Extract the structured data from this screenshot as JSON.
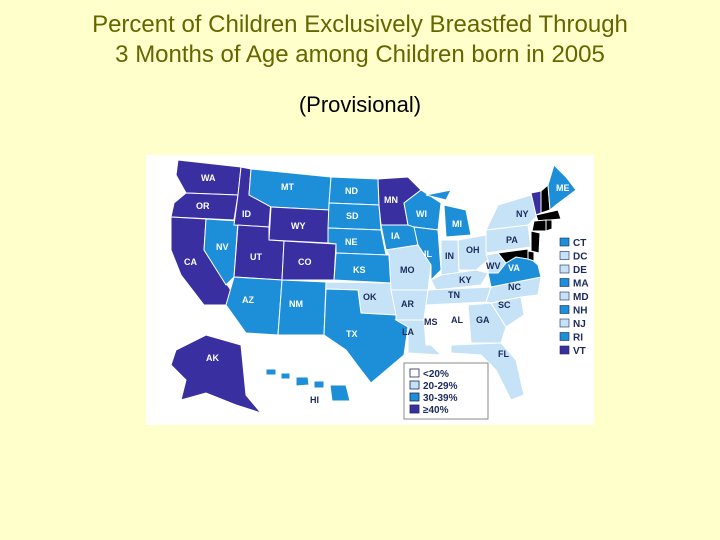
{
  "title_line1": "Percent of Children Exclusively Breastfed Through",
  "title_line2": "3 Months of Age among Children born in 2005",
  "subtitle": "(Provisional)",
  "colors": {
    "lt20": "#ffffff",
    "c20_29": "#c6e2f7",
    "c30_39": "#1d8fd8",
    "ge40": "#3a2fa0",
    "background": "#ffffcc"
  },
  "legend": {
    "lt20": "<20%",
    "c20_29": "20-29%",
    "c30_39": "30-39%",
    "ge40": "≥40%"
  },
  "states": {
    "WA": {
      "label": "WA",
      "category": "ge40"
    },
    "OR": {
      "label": "OR",
      "category": "ge40"
    },
    "CA": {
      "label": "CA",
      "category": "ge40"
    },
    "ID": {
      "label": "ID",
      "category": "ge40"
    },
    "NV": {
      "label": "NV",
      "category": "c30_39"
    },
    "MT": {
      "label": "MT",
      "category": "c30_39"
    },
    "WY": {
      "label": "WY",
      "category": "ge40"
    },
    "UT": {
      "label": "UT",
      "category": "ge40"
    },
    "CO": {
      "label": "CO",
      "category": "ge40"
    },
    "AZ": {
      "label": "AZ",
      "category": "c30_39"
    },
    "NM": {
      "label": "NM",
      "category": "c30_39"
    },
    "ND": {
      "label": "ND",
      "category": "c30_39"
    },
    "SD": {
      "label": "SD",
      "category": "c30_39"
    },
    "NE": {
      "label": "NE",
      "category": "c30_39"
    },
    "KS": {
      "label": "KS",
      "category": "c30_39"
    },
    "OK": {
      "label": "OK",
      "category": "c20_29"
    },
    "TX": {
      "label": "TX",
      "category": "c30_39"
    },
    "MN": {
      "label": "MN",
      "category": "ge40"
    },
    "IA": {
      "label": "IA",
      "category": "c30_39"
    },
    "MO": {
      "label": "MO",
      "category": "c20_29"
    },
    "AR": {
      "label": "AR",
      "category": "c20_29"
    },
    "LA": {
      "label": "LA",
      "category": "c20_29"
    },
    "WI": {
      "label": "WI",
      "category": "c30_39"
    },
    "IL": {
      "label": "IL",
      "category": "c30_39"
    },
    "MI": {
      "label": "MI",
      "category": "c30_39"
    },
    "IN": {
      "label": "IN",
      "category": "c20_29"
    },
    "OH": {
      "label": "OH",
      "category": "c20_29"
    },
    "KY": {
      "label": "KY",
      "category": "c20_29"
    },
    "TN": {
      "label": "TN",
      "category": "c20_29"
    },
    "MS": {
      "label": "MS",
      "category": "lt20"
    },
    "AL": {
      "label": "AL",
      "category": "lt20"
    },
    "GA": {
      "label": "GA",
      "category": "c20_29"
    },
    "FL": {
      "label": "FL",
      "category": "c20_29"
    },
    "SC": {
      "label": "SC",
      "category": "c20_29"
    },
    "NC": {
      "label": "NC",
      "category": "c20_29"
    },
    "VA": {
      "label": "VA",
      "category": "c30_39"
    },
    "WV": {
      "label": "WV",
      "category": "c20_29"
    },
    "PA": {
      "label": "PA",
      "category": "c20_29"
    },
    "NY": {
      "label": "NY",
      "category": "c20_29"
    },
    "VT": {
      "label": "VT",
      "category": "ge40"
    },
    "ME": {
      "label": "ME",
      "category": "c30_39"
    },
    "AK": {
      "label": "AK",
      "category": "ge40"
    },
    "HI": {
      "label": "HI",
      "category": "c30_39"
    }
  },
  "small_states": [
    {
      "label": "CT",
      "category": "c30_39"
    },
    {
      "label": "DC",
      "category": "c20_29"
    },
    {
      "label": "DE",
      "category": "c20_29"
    },
    {
      "label": "MA",
      "category": "c30_39"
    },
    {
      "label": "MD",
      "category": "c20_29"
    },
    {
      "label": "NH",
      "category": "c30_39"
    },
    {
      "label": "NJ",
      "category": "c20_29"
    },
    {
      "label": "RI",
      "category": "c30_39"
    },
    {
      "label": "VT",
      "category": "ge40"
    }
  ]
}
